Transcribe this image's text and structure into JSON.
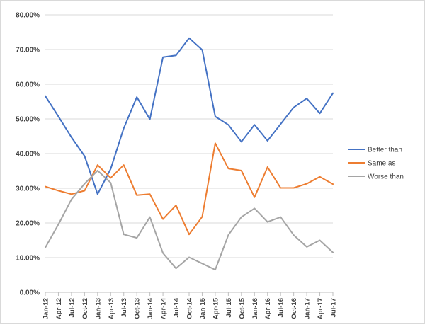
{
  "chart_data": {
    "type": "line",
    "title": "",
    "xlabel": "",
    "ylabel": "",
    "ylim": [
      0,
      80
    ],
    "y_ticks": [
      "0.00%",
      "10.00%",
      "20.00%",
      "30.00%",
      "40.00%",
      "50.00%",
      "60.00%",
      "70.00%",
      "80.00%"
    ],
    "grid": true,
    "legend_position": "right",
    "categories": [
      "Jan-12",
      "Apr-12",
      "Jul-12",
      "Oct-12",
      "Jan-13",
      "Apr-13",
      "Jul-13",
      "Oct-13",
      "Jan-14",
      "Apr-14",
      "Jul-14",
      "Oct-14",
      "Jan-15",
      "Apr-15",
      "Jul-15",
      "Oct-15",
      "Jan-16",
      "Apr-16",
      "Jul-16",
      "Oct-16",
      "Jan-17",
      "Apr-17",
      "Jul-17"
    ],
    "series": [
      {
        "name": "Better than",
        "color": "#4472C4",
        "values": [
          56.6,
          50.7,
          44.7,
          39.3,
          28.3,
          35.6,
          47.3,
          56.3,
          49.9,
          67.8,
          68.3,
          73.3,
          69.9,
          50.7,
          48.3,
          43.4,
          48.3,
          43.7,
          48.5,
          53.3,
          55.9,
          51.6,
          57.4
        ]
      },
      {
        "name": "Same as",
        "color": "#ED7D31",
        "values": [
          30.5,
          29.3,
          28.3,
          29.3,
          36.7,
          33.0,
          36.7,
          28.0,
          28.3,
          21.1,
          25.1,
          16.7,
          21.8,
          43.0,
          35.7,
          35.1,
          27.4,
          36.1,
          30.1,
          30.1,
          31.3,
          33.3,
          31.2
        ]
      },
      {
        "name": "Worse than",
        "color": "#A5A5A5",
        "values": [
          12.9,
          19.6,
          26.8,
          31.3,
          35.1,
          31.6,
          16.7,
          15.7,
          21.7,
          11.3,
          6.9,
          10.1,
          8.3,
          6.5,
          16.5,
          21.7,
          24.2,
          20.3,
          21.7,
          16.5,
          13.1,
          15.0,
          11.5
        ]
      }
    ]
  }
}
